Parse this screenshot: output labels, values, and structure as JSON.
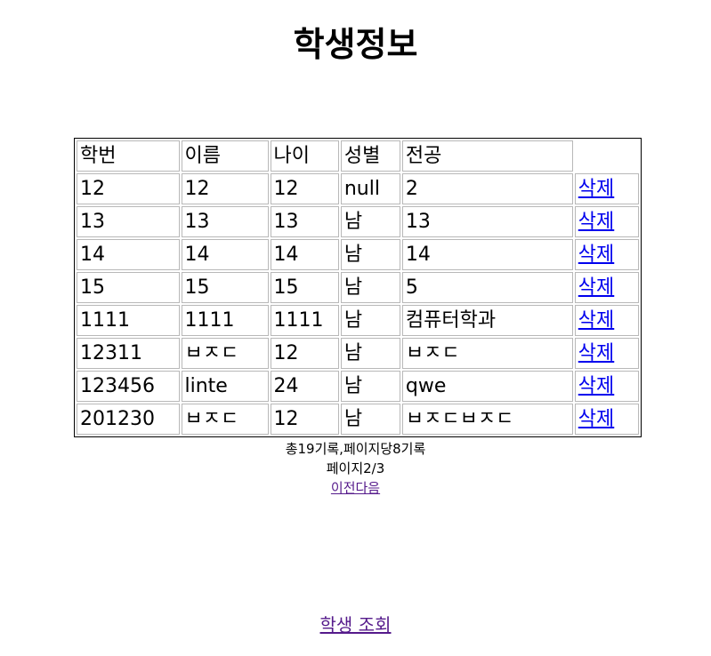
{
  "page": {
    "title": "학생정보"
  },
  "table": {
    "headers": [
      "학번",
      "이름",
      "나이",
      "성별",
      "전공",
      ""
    ],
    "delete_label": "삭제",
    "rows": [
      {
        "id": "12",
        "name": "12",
        "age": "12",
        "gender": "null",
        "major": "2"
      },
      {
        "id": "13",
        "name": "13",
        "age": "13",
        "gender": "남",
        "major": "13"
      },
      {
        "id": "14",
        "name": "14",
        "age": "14",
        "gender": "남",
        "major": "14"
      },
      {
        "id": "15",
        "name": "15",
        "age": "15",
        "gender": "남",
        "major": "5"
      },
      {
        "id": "1111",
        "name": "1111",
        "age": "1111",
        "gender": "남",
        "major": "컴퓨터학과"
      },
      {
        "id": "12311",
        "name": "ㅂㅈㄷ",
        "age": "12",
        "gender": "남",
        "major": "ㅂㅈㄷ"
      },
      {
        "id": "123456",
        "name": "linte",
        "age": "24",
        "gender": "남",
        "major": "qwe"
      },
      {
        "id": "201230",
        "name": "ㅂㅈㄷ",
        "age": "12",
        "gender": "남",
        "major": "ㅂㅈㄷㅂㅈㄷ"
      }
    ]
  },
  "pagination": {
    "total_text": "총19기록,페이지당8기록",
    "page_text": "페이지2/3",
    "prev_label": "이전",
    "next_label": "다음"
  },
  "footer": {
    "student_query_label": "학생 조회"
  },
  "colors": {
    "link_unvisited": "#0000ee",
    "link_visited": "#551a8b"
  }
}
